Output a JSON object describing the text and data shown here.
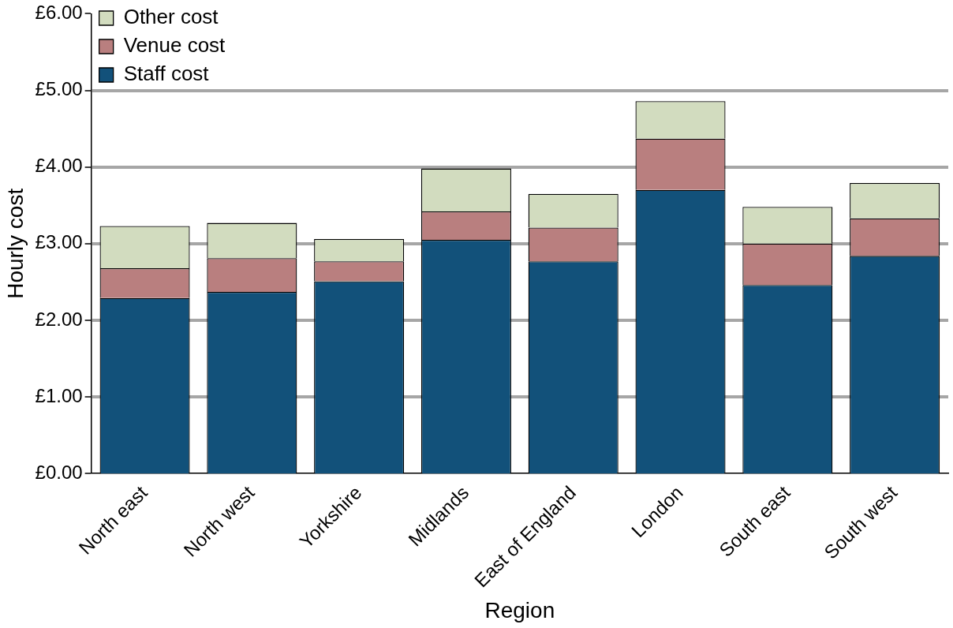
{
  "chart_data": {
    "type": "bar",
    "stacked": true,
    "xlabel": "Region",
    "ylabel": "Hourly cost",
    "categories": [
      "North east",
      "North west",
      "Yorkshire",
      "Midlands",
      "East of England",
      "London",
      "South east",
      "South west"
    ],
    "series": [
      {
        "name": "Staff cost",
        "color": "#12517a",
        "values": [
          2.29,
          2.37,
          2.51,
          3.05,
          2.77,
          3.7,
          2.46,
          2.84
        ]
      },
      {
        "name": "Venue cost",
        "color": "#b97f7f",
        "values": [
          0.39,
          0.44,
          0.26,
          0.37,
          0.44,
          0.67,
          0.54,
          0.49
        ]
      },
      {
        "name": "Other cost",
        "color": "#d2dcbf",
        "values": [
          0.55,
          0.46,
          0.29,
          0.56,
          0.44,
          0.49,
          0.48,
          0.46
        ]
      }
    ],
    "ylim": [
      0,
      6
    ],
    "yticks": [
      {
        "value": 0,
        "label": "£0.00"
      },
      {
        "value": 1,
        "label": "£1.00"
      },
      {
        "value": 2,
        "label": "£2.00"
      },
      {
        "value": 3,
        "label": "£3.00"
      },
      {
        "value": 4,
        "label": "£4.00"
      },
      {
        "value": 5,
        "label": "£5.00"
      },
      {
        "value": 6,
        "label": "£6.00"
      }
    ],
    "grid": "y",
    "legend": "top left"
  }
}
